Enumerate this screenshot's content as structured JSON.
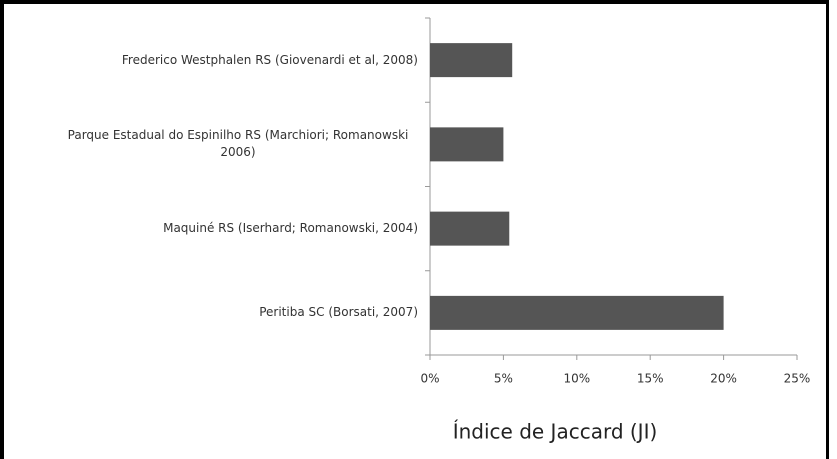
{
  "chart_data": {
    "type": "barh",
    "categories": [
      "Frederico Westphalen RS (Giovenardi et al, 2008)",
      "Parque Estadual  do Espinilho RS (Marchiori; Romanowski 2006)",
      "Maquiné RS (Iserhard; Romanowski,  2004)",
      "Peritiba SC (Borsati, 2007)"
    ],
    "values": [
      5.6,
      5.0,
      5.4,
      20.0
    ],
    "color": "#555555",
    "xlim": [
      0,
      25
    ],
    "xticks": [
      {
        "value": 0,
        "label": "0%"
      },
      {
        "value": 5,
        "label": "5%"
      },
      {
        "value": 10,
        "label": "10%"
      },
      {
        "value": 15,
        "label": "15%"
      },
      {
        "value": 20,
        "label": "20%"
      },
      {
        "value": 25,
        "label": "25%"
      }
    ],
    "x_label": "Índice de Jaccard (JI)"
  }
}
